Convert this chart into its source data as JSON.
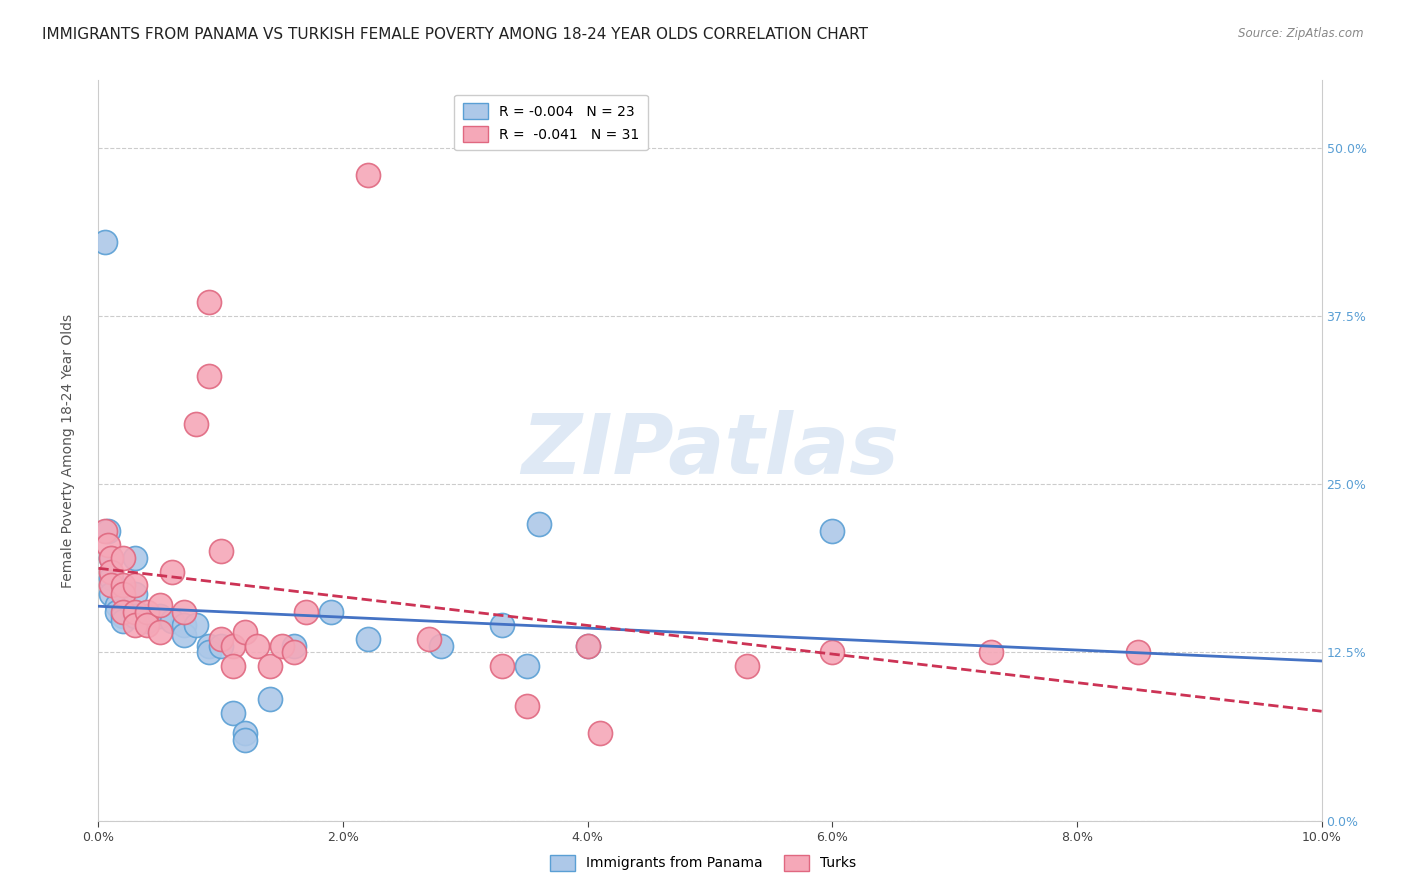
{
  "title": "IMMIGRANTS FROM PANAMA VS TURKISH FEMALE POVERTY AMONG 18-24 YEAR OLDS CORRELATION CHART",
  "source": "Source: ZipAtlas.com",
  "ylabel": "Female Poverty Among 18-24 Year Olds",
  "xlim": [
    0.0,
    0.1
  ],
  "ylim": [
    0.0,
    0.55
  ],
  "x_tick_vals": [
    0.0,
    0.02,
    0.04,
    0.06,
    0.08,
    0.1
  ],
  "x_tick_labels": [
    "0.0%",
    "2.0%",
    "4.0%",
    "6.0%",
    "8.0%",
    "10.0%"
  ],
  "y_tick_vals": [
    0.0,
    0.125,
    0.25,
    0.375,
    0.5
  ],
  "y_tick_labels": [
    "0.0%",
    "12.5%",
    "25.0%",
    "37.5%",
    "50.0%"
  ],
  "panama_points": [
    [
      0.0005,
      0.43
    ],
    [
      0.0008,
      0.215
    ],
    [
      0.001,
      0.195
    ],
    [
      0.001,
      0.18
    ],
    [
      0.001,
      0.168
    ],
    [
      0.0015,
      0.16
    ],
    [
      0.0015,
      0.155
    ],
    [
      0.002,
      0.152
    ],
    [
      0.002,
      0.148
    ],
    [
      0.003,
      0.195
    ],
    [
      0.003,
      0.168
    ],
    [
      0.003,
      0.152
    ],
    [
      0.004,
      0.152
    ],
    [
      0.004,
      0.148
    ],
    [
      0.005,
      0.152
    ],
    [
      0.006,
      0.148
    ],
    [
      0.007,
      0.145
    ],
    [
      0.007,
      0.138
    ],
    [
      0.008,
      0.145
    ],
    [
      0.009,
      0.13
    ],
    [
      0.009,
      0.125
    ],
    [
      0.01,
      0.13
    ],
    [
      0.011,
      0.08
    ],
    [
      0.012,
      0.065
    ],
    [
      0.012,
      0.06
    ],
    [
      0.014,
      0.09
    ],
    [
      0.016,
      0.13
    ],
    [
      0.019,
      0.155
    ],
    [
      0.022,
      0.135
    ],
    [
      0.028,
      0.13
    ],
    [
      0.033,
      0.145
    ],
    [
      0.035,
      0.115
    ],
    [
      0.036,
      0.22
    ],
    [
      0.04,
      0.13
    ],
    [
      0.06,
      0.215
    ]
  ],
  "turk_points": [
    [
      0.0005,
      0.215
    ],
    [
      0.0008,
      0.205
    ],
    [
      0.001,
      0.195
    ],
    [
      0.001,
      0.185
    ],
    [
      0.001,
      0.175
    ],
    [
      0.002,
      0.195
    ],
    [
      0.002,
      0.175
    ],
    [
      0.002,
      0.168
    ],
    [
      0.002,
      0.155
    ],
    [
      0.003,
      0.175
    ],
    [
      0.003,
      0.155
    ],
    [
      0.003,
      0.145
    ],
    [
      0.004,
      0.155
    ],
    [
      0.004,
      0.145
    ],
    [
      0.005,
      0.16
    ],
    [
      0.005,
      0.14
    ],
    [
      0.006,
      0.185
    ],
    [
      0.007,
      0.155
    ],
    [
      0.008,
      0.295
    ],
    [
      0.009,
      0.385
    ],
    [
      0.009,
      0.33
    ],
    [
      0.01,
      0.2
    ],
    [
      0.01,
      0.135
    ],
    [
      0.011,
      0.13
    ],
    [
      0.011,
      0.115
    ],
    [
      0.012,
      0.14
    ],
    [
      0.013,
      0.13
    ],
    [
      0.014,
      0.115
    ],
    [
      0.015,
      0.13
    ],
    [
      0.016,
      0.125
    ],
    [
      0.017,
      0.155
    ],
    [
      0.022,
      0.48
    ],
    [
      0.027,
      0.135
    ],
    [
      0.033,
      0.115
    ],
    [
      0.035,
      0.085
    ],
    [
      0.04,
      0.13
    ],
    [
      0.041,
      0.065
    ],
    [
      0.053,
      0.115
    ],
    [
      0.06,
      0.125
    ],
    [
      0.073,
      0.125
    ],
    [
      0.085,
      0.125
    ]
  ],
  "panama_color": "#adc8e8",
  "panama_edge_color": "#5a9fd4",
  "turk_color": "#f5a8b8",
  "turk_edge_color": "#e06880",
  "trend_panama_color": "#4472c4",
  "trend_turk_color": "#cc3355",
  "background_color": "#ffffff",
  "grid_color": "#cccccc",
  "right_axis_color": "#5a9fd4",
  "watermark_text": "ZIPatlas",
  "title_fontsize": 11,
  "axis_label_fontsize": 10,
  "tick_fontsize": 9,
  "legend_fontsize": 10
}
